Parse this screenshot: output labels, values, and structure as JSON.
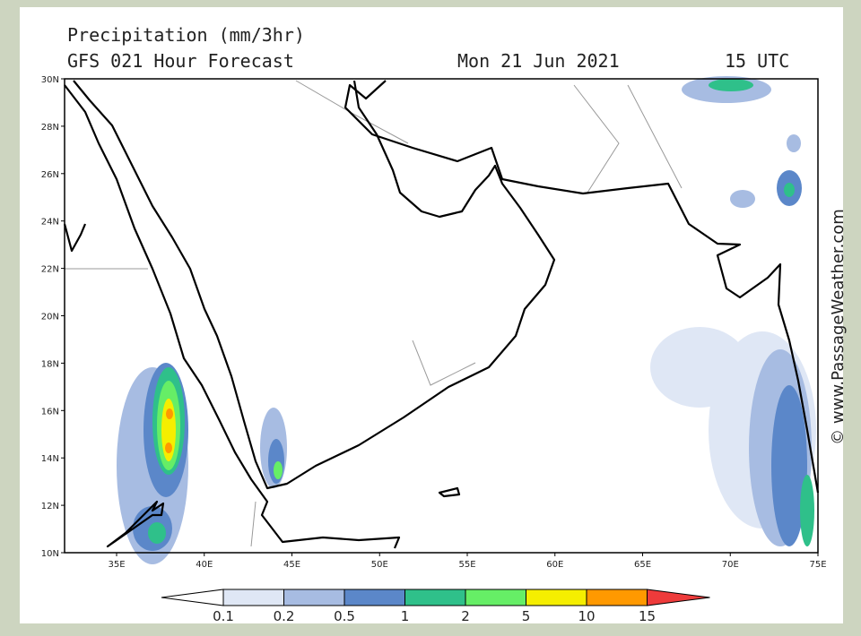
{
  "header": {
    "title": "Precipitation (mm/3hr)",
    "subtitle": "GFS 021 Hour Forecast",
    "date": "Mon 21 Jun 2021",
    "time": "15 UTC"
  },
  "map": {
    "lat_labels": [
      "30N",
      "28N",
      "26N",
      "24N",
      "22N",
      "20N",
      "18N",
      "16N",
      "14N",
      "12N",
      "10N"
    ],
    "lon_labels": [
      "35E",
      "40E",
      "45E",
      "50E",
      "55E",
      "60E",
      "65E",
      "70E",
      "75E"
    ]
  },
  "legend": {
    "colors": [
      "#ffffff",
      "#dfe7f5",
      "#a7bce2",
      "#5b87c9",
      "#2fc08a",
      "#66ee66",
      "#f5ee00",
      "#ff9900",
      "#ee3b3b"
    ],
    "labels": [
      "0.1",
      "0.2",
      "0.5",
      "1",
      "2",
      "5",
      "10",
      "15"
    ]
  },
  "watermark": "© www.PassageWeather.com"
}
